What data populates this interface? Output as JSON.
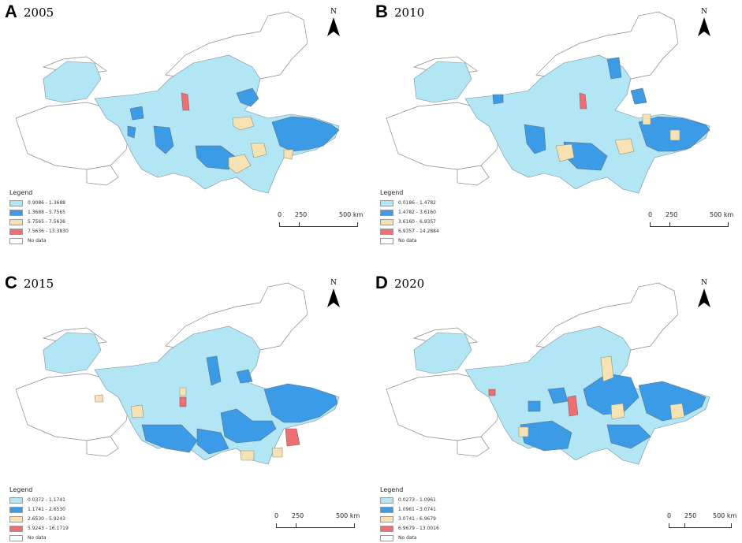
{
  "colors": {
    "class1": "#b3e6f5",
    "class2": "#3c9be6",
    "class3": "#f7e2b3",
    "class4": "#ee6f73",
    "nodata": "#ffffff",
    "outline": "#8a8a8a"
  },
  "north_label": "N",
  "scale": {
    "zero": "0",
    "mid": "250",
    "end": "500 km"
  },
  "legend_title": "Legend",
  "nodata_label": "No data",
  "panels": [
    {
      "letter": "A",
      "year": "2005",
      "legend": [
        "0.9086 - 1.3688",
        "1.3688 - 5.7565",
        "5.7565 - 7.5636",
        "7.5636 - 13.3830"
      ]
    },
    {
      "letter": "B",
      "year": "2010",
      "legend": [
        "0.0186 - 1.4782",
        "1.4782 - 3.6160",
        "3.6160 - 6.9357",
        "6.9357 - 14.2884"
      ]
    },
    {
      "letter": "C",
      "year": "2015",
      "legend": [
        "0.0372 - 1.1741",
        "1.1741 - 2.6530",
        "2.6530 - 5.9243",
        "5.9243 - 16.1719"
      ]
    },
    {
      "letter": "D",
      "year": "2020",
      "legend": [
        "0.0273 - 1.0961",
        "1.0961 - 3.0741",
        "3.0741 - 6.9679",
        "6.9679 - 13.0016"
      ]
    }
  ]
}
